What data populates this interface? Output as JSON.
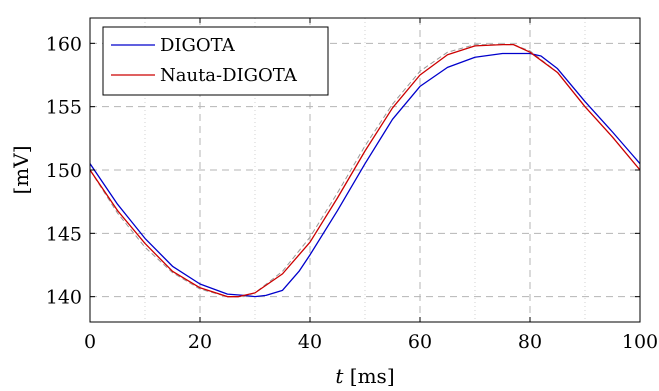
{
  "chart_data": {
    "type": "line",
    "xlabel_var": "t",
    "xlabel_unit": "[ms]",
    "ylabel": "[mV]",
    "xlim": [
      0,
      100
    ],
    "ylim": [
      138,
      162
    ],
    "xticks": [
      0,
      20,
      40,
      60,
      80,
      100
    ],
    "xtick_labels": [
      "0",
      "20",
      "40",
      "60",
      "80",
      "100"
    ],
    "yticks": [
      140,
      145,
      150,
      155,
      160
    ],
    "ytick_labels": [
      "140",
      "145",
      "150",
      "155",
      "160"
    ],
    "grid": true,
    "legend_position": "top-left",
    "series": [
      {
        "name": "DIGOTA",
        "color": "#0000cc",
        "dash": "solid",
        "x": [
          0,
          5,
          10,
          15,
          20,
          25,
          28,
          30,
          32,
          35,
          38,
          40,
          45,
          50,
          55,
          60,
          65,
          70,
          75,
          80,
          82,
          85,
          90,
          95,
          100
        ],
        "y": [
          150.5,
          147.3,
          144.6,
          142.4,
          141.0,
          140.2,
          140.1,
          140.0,
          140.1,
          140.5,
          142.0,
          143.3,
          146.8,
          150.5,
          154.0,
          156.6,
          158.1,
          158.9,
          159.2,
          159.2,
          159.0,
          158.0,
          155.4,
          153.0,
          150.5
        ]
      },
      {
        "name": "Nauta-DIGOTA",
        "color": "#cc0000",
        "dash": "solid",
        "x": [
          0,
          5,
          10,
          15,
          20,
          25,
          27,
          30,
          35,
          40,
          45,
          50,
          55,
          60,
          65,
          70,
          75,
          77,
          80,
          85,
          90,
          95,
          100
        ],
        "y": [
          150.0,
          146.8,
          144.2,
          142.0,
          140.7,
          140.0,
          140.0,
          140.3,
          141.8,
          144.3,
          147.8,
          151.5,
          154.9,
          157.5,
          159.1,
          159.8,
          159.9,
          159.9,
          159.3,
          157.7,
          155.0,
          152.6,
          150.0
        ]
      },
      {
        "name": "",
        "color": "#999999",
        "dash": "dashed",
        "x": [
          0,
          5,
          10,
          15,
          20,
          25,
          28,
          30,
          35,
          40,
          45,
          50,
          55,
          60,
          65,
          70,
          75,
          77,
          80,
          85,
          90,
          95,
          100
        ],
        "y": [
          150.0,
          146.6,
          143.9,
          141.9,
          140.6,
          140.0,
          140.0,
          140.3,
          142.0,
          144.7,
          148.2,
          151.9,
          155.2,
          157.8,
          159.3,
          159.9,
          159.9,
          159.9,
          159.4,
          157.7,
          155.0,
          152.6,
          150.0
        ]
      }
    ]
  }
}
